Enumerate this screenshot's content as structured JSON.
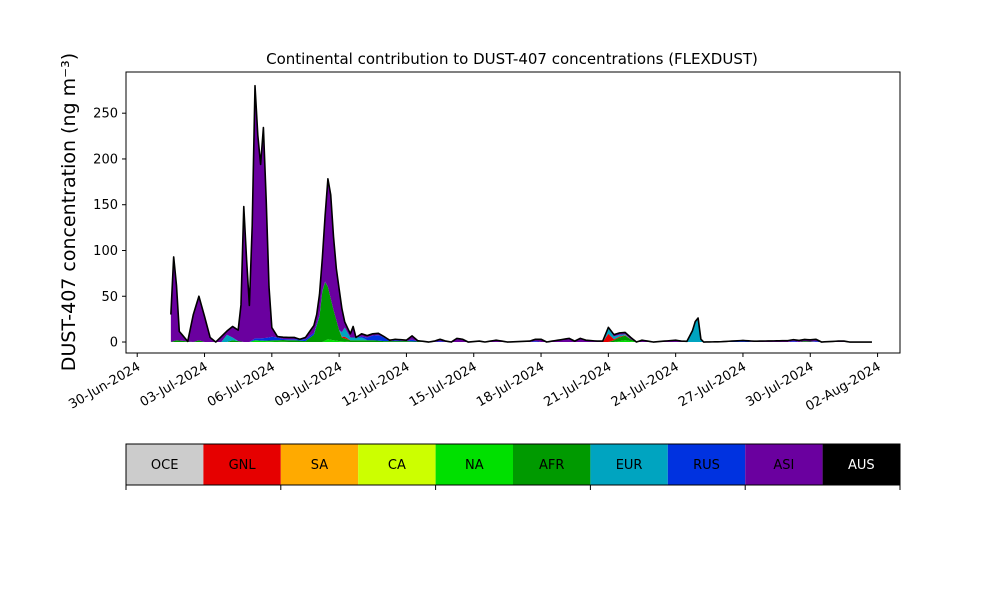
{
  "chart_data": {
    "type": "area",
    "stacked": true,
    "title": "Continental contribution to DUST-407 concentrations (FLEXDUST)",
    "ylabel": "DUST-407 concentration (ng m⁻³)",
    "xlabel": "",
    "ylim": [
      -12,
      295
    ],
    "xlim": [
      "2024-06-29T12:00",
      "2024-08-03T00:00"
    ],
    "grid": false,
    "y_ticks": [
      0,
      50,
      100,
      150,
      200,
      250
    ],
    "x_ticks": [
      "30-Jun-2024",
      "03-Jul-2024",
      "06-Jul-2024",
      "09-Jul-2024",
      "12-Jul-2024",
      "15-Jul-2024",
      "18-Jul-2024",
      "21-Jul-2024",
      "24-Jul-2024",
      "27-Jul-2024",
      "30-Jul-2024",
      "02-Aug-2024"
    ],
    "total_line_color": "#000000",
    "legend": {
      "placement": "bottom",
      "style": "colorbar",
      "entries": [
        {
          "label": "OCE",
          "color": "#cccccc",
          "text_color": "#000000"
        },
        {
          "label": "GNL",
          "color": "#e60000",
          "text_color": "#000000"
        },
        {
          "label": "SA",
          "color": "#ffaa00",
          "text_color": "#000000"
        },
        {
          "label": "CA",
          "color": "#ccff00",
          "text_color": "#000000"
        },
        {
          "label": "NA",
          "color": "#00e000",
          "text_color": "#000000"
        },
        {
          "label": "AFR",
          "color": "#009a00",
          "text_color": "#000000"
        },
        {
          "label": "EUR",
          "color": "#00a4c0",
          "text_color": "#000000"
        },
        {
          "label": "RUS",
          "color": "#0032e0",
          "text_color": "#000000"
        },
        {
          "label": "ASI",
          "color": "#6a009f",
          "text_color": "#000000"
        },
        {
          "label": "AUS",
          "color": "#000000",
          "text_color": "#ffffff"
        }
      ]
    },
    "series_order": [
      "NA",
      "AFR",
      "GNL",
      "EUR",
      "RUS",
      "ASI"
    ],
    "series": [
      {
        "name": "NA",
        "color": "#00e000",
        "points": [
          [
            "2024-07-01T12:00",
            0
          ],
          [
            "2024-07-05T00:00",
            0
          ],
          [
            "2024-07-05T06:00",
            2
          ],
          [
            "2024-07-05T18:00",
            1
          ],
          [
            "2024-07-06T18:00",
            0
          ],
          [
            "2024-07-08T06:00",
            0
          ],
          [
            "2024-07-08T12:00",
            3
          ],
          [
            "2024-07-09T00:00",
            1
          ],
          [
            "2024-07-09T12:00",
            0
          ],
          [
            "2024-07-21T06:00",
            0
          ],
          [
            "2024-07-21T18:00",
            2
          ],
          [
            "2024-07-22T06:00",
            0
          ],
          [
            "2024-08-01T18:00",
            0
          ]
        ]
      },
      {
        "name": "AFR",
        "color": "#009a00",
        "points": [
          [
            "2024-07-01T12:00",
            0
          ],
          [
            "2024-07-01T18:00",
            2
          ],
          [
            "2024-07-02T12:00",
            0
          ],
          [
            "2024-07-02T18:00",
            2
          ],
          [
            "2024-07-03T00:00",
            0
          ],
          [
            "2024-07-04T00:00",
            0
          ],
          [
            "2024-07-04T06:00",
            2
          ],
          [
            "2024-07-04T18:00",
            0
          ],
          [
            "2024-07-05T12:00",
            0
          ],
          [
            "2024-07-06T00:00",
            1
          ],
          [
            "2024-07-06T12:00",
            2
          ],
          [
            "2024-07-07T00:00",
            2
          ],
          [
            "2024-07-07T12:00",
            1
          ],
          [
            "2024-07-07T21:00",
            8
          ],
          [
            "2024-07-08T03:00",
            28
          ],
          [
            "2024-07-08T06:00",
            55
          ],
          [
            "2024-07-08T09:00",
            64
          ],
          [
            "2024-07-08T13:00",
            55
          ],
          [
            "2024-07-08T16:00",
            40
          ],
          [
            "2024-07-08T20:00",
            26
          ],
          [
            "2024-07-09T00:00",
            12
          ],
          [
            "2024-07-09T03:00",
            4
          ],
          [
            "2024-07-09T12:00",
            2
          ],
          [
            "2024-07-10T12:00",
            2
          ],
          [
            "2024-07-11T00:00",
            1
          ],
          [
            "2024-07-12T00:00",
            1
          ],
          [
            "2024-07-13T00:00",
            0
          ],
          [
            "2024-07-21T00:00",
            0
          ],
          [
            "2024-07-21T06:00",
            2
          ],
          [
            "2024-07-21T12:00",
            4
          ],
          [
            "2024-07-21T18:00",
            5
          ],
          [
            "2024-07-22T00:00",
            2
          ],
          [
            "2024-07-22T06:00",
            0
          ],
          [
            "2024-07-29T12:00",
            0
          ],
          [
            "2024-07-29T18:00",
            1
          ],
          [
            "2024-07-30T06:00",
            0
          ],
          [
            "2024-08-01T18:00",
            0
          ]
        ]
      },
      {
        "name": "GNL",
        "color": "#e60000",
        "points": [
          [
            "2024-07-01T12:00",
            0
          ],
          [
            "2024-07-09T00:00",
            0
          ],
          [
            "2024-07-09T06:00",
            2
          ],
          [
            "2024-07-09T12:00",
            0
          ],
          [
            "2024-07-20T18:00",
            0
          ],
          [
            "2024-07-21T00:00",
            9
          ],
          [
            "2024-07-21T06:00",
            1
          ],
          [
            "2024-07-21T12:00",
            1
          ],
          [
            "2024-07-22T00:00",
            0
          ],
          [
            "2024-08-01T18:00",
            0
          ]
        ]
      },
      {
        "name": "EUR",
        "color": "#00a4c0",
        "points": [
          [
            "2024-07-01T12:00",
            0
          ],
          [
            "2024-07-03T18:00",
            0
          ],
          [
            "2024-07-04T00:00",
            8
          ],
          [
            "2024-07-04T06:00",
            3
          ],
          [
            "2024-07-04T12:00",
            0
          ],
          [
            "2024-07-09T00:00",
            0
          ],
          [
            "2024-07-09T06:00",
            10
          ],
          [
            "2024-07-09T12:00",
            3
          ],
          [
            "2024-07-10T00:00",
            3
          ],
          [
            "2024-07-10T06:00",
            0
          ],
          [
            "2024-07-20T18:00",
            0
          ],
          [
            "2024-07-21T00:00",
            6
          ],
          [
            "2024-07-21T06:00",
            3
          ],
          [
            "2024-07-21T12:00",
            2
          ],
          [
            "2024-07-22T00:00",
            0
          ],
          [
            "2024-07-24T12:00",
            0
          ],
          [
            "2024-07-24T18:00",
            12
          ],
          [
            "2024-07-24T21:00",
            22
          ],
          [
            "2024-07-25T00:00",
            26
          ],
          [
            "2024-07-25T03:00",
            3
          ],
          [
            "2024-07-25T06:00",
            0
          ],
          [
            "2024-08-01T18:00",
            0
          ]
        ]
      },
      {
        "name": "RUS",
        "color": "#0032e0",
        "points": [
          [
            "2024-07-01T12:00",
            0
          ],
          [
            "2024-07-05T00:00",
            0
          ],
          [
            "2024-07-05T06:00",
            2
          ],
          [
            "2024-07-05T18:00",
            3
          ],
          [
            "2024-07-06T00:00",
            4
          ],
          [
            "2024-07-06T06:00",
            3
          ],
          [
            "2024-07-06T12:00",
            1
          ],
          [
            "2024-07-07T00:00",
            1
          ],
          [
            "2024-07-07T12:00",
            2
          ],
          [
            "2024-07-08T00:00",
            2
          ],
          [
            "2024-07-08T12:00",
            0
          ],
          [
            "2024-07-09T18:00",
            0
          ],
          [
            "2024-07-10T00:00",
            1
          ],
          [
            "2024-07-10T12:00",
            5
          ],
          [
            "2024-07-10T18:00",
            6
          ],
          [
            "2024-07-11T00:00",
            4
          ],
          [
            "2024-07-11T06:00",
            0
          ],
          [
            "2024-07-11T12:00",
            1
          ],
          [
            "2024-07-12T00:00",
            0
          ],
          [
            "2024-07-12T06:00",
            2
          ],
          [
            "2024-07-12T12:00",
            0
          ],
          [
            "2024-07-13T06:00",
            0
          ],
          [
            "2024-07-13T12:00",
            1
          ],
          [
            "2024-07-13T18:00",
            0
          ],
          [
            "2024-07-17T12:00",
            0
          ],
          [
            "2024-07-17T18:00",
            1
          ],
          [
            "2024-07-18T00:00",
            0
          ],
          [
            "2024-07-26T00:00",
            0
          ],
          [
            "2024-07-27T00:00",
            1
          ],
          [
            "2024-07-27T12:00",
            0
          ],
          [
            "2024-07-29T00:00",
            0
          ],
          [
            "2024-07-29T06:00",
            1
          ],
          [
            "2024-07-29T12:00",
            0
          ],
          [
            "2024-07-30T00:00",
            0
          ],
          [
            "2024-07-30T06:00",
            1
          ],
          [
            "2024-07-30T12:00",
            0
          ],
          [
            "2024-08-01T18:00",
            0
          ]
        ]
      },
      {
        "name": "ASI",
        "color": "#6a009f",
        "points": [
          [
            "2024-07-01T12:00",
            30
          ],
          [
            "2024-07-01T15:00",
            92
          ],
          [
            "2024-07-01T18:00",
            60
          ],
          [
            "2024-07-01T21:00",
            10
          ],
          [
            "2024-07-02T06:00",
            0
          ],
          [
            "2024-07-02T12:00",
            30
          ],
          [
            "2024-07-02T18:00",
            48
          ],
          [
            "2024-07-03T00:00",
            28
          ],
          [
            "2024-07-03T06:00",
            5
          ],
          [
            "2024-07-03T12:00",
            0
          ],
          [
            "2024-07-03T18:00",
            6
          ],
          [
            "2024-07-04T00:00",
            4
          ],
          [
            "2024-07-04T06:00",
            12
          ],
          [
            "2024-07-04T12:00",
            12
          ],
          [
            "2024-07-04T15:00",
            40
          ],
          [
            "2024-07-04T18:00",
            148
          ],
          [
            "2024-07-04T21:00",
            90
          ],
          [
            "2024-07-05T00:00",
            40
          ],
          [
            "2024-07-05T03:00",
            125
          ],
          [
            "2024-07-05T06:00",
            276
          ],
          [
            "2024-07-05T09:00",
            222
          ],
          [
            "2024-07-05T12:00",
            190
          ],
          [
            "2024-07-05T15:00",
            230
          ],
          [
            "2024-07-05T18:00",
            150
          ],
          [
            "2024-07-05T21:00",
            55
          ],
          [
            "2024-07-06T00:00",
            10
          ],
          [
            "2024-07-06T06:00",
            1
          ],
          [
            "2024-07-06T12:00",
            2
          ],
          [
            "2024-07-07T00:00",
            2
          ],
          [
            "2024-07-07T06:00",
            0
          ],
          [
            "2024-07-07T12:00",
            2
          ],
          [
            "2024-07-07T18:00",
            6
          ],
          [
            "2024-07-08T00:00",
            10
          ],
          [
            "2024-07-08T06:00",
            35
          ],
          [
            "2024-07-08T09:00",
            72
          ],
          [
            "2024-07-08T12:00",
            118
          ],
          [
            "2024-07-08T14:00",
            125
          ],
          [
            "2024-07-08T17:00",
            90
          ],
          [
            "2024-07-08T20:00",
            60
          ],
          [
            "2024-07-09T00:00",
            45
          ],
          [
            "2024-07-09T06:00",
            6
          ],
          [
            "2024-07-09T12:00",
            4
          ],
          [
            "2024-07-09T15:00",
            12
          ],
          [
            "2024-07-09T18:00",
            0
          ],
          [
            "2024-07-10T00:00",
            3
          ],
          [
            "2024-07-10T06:00",
            2
          ],
          [
            "2024-07-10T12:00",
            2
          ],
          [
            "2024-07-10T18:00",
            2
          ],
          [
            "2024-07-11T00:00",
            1
          ],
          [
            "2024-07-12T00:00",
            1
          ],
          [
            "2024-07-12T06:00",
            4
          ],
          [
            "2024-07-12T12:00",
            1
          ],
          [
            "2024-07-13T00:00",
            0
          ],
          [
            "2024-07-13T12:00",
            2
          ],
          [
            "2024-07-14T00:00",
            0
          ],
          [
            "2024-07-14T06:00",
            4
          ],
          [
            "2024-07-14T12:00",
            3
          ],
          [
            "2024-07-14T18:00",
            0
          ],
          [
            "2024-07-15T06:00",
            1
          ],
          [
            "2024-07-15T12:00",
            0
          ],
          [
            "2024-07-16T00:00",
            2
          ],
          [
            "2024-07-16T12:00",
            0
          ],
          [
            "2024-07-17T12:00",
            1
          ],
          [
            "2024-07-18T00:00",
            3
          ],
          [
            "2024-07-18T06:00",
            0
          ],
          [
            "2024-07-19T06:00",
            4
          ],
          [
            "2024-07-19T12:00",
            1
          ],
          [
            "2024-07-19T18:00",
            4
          ],
          [
            "2024-07-20T00:00",
            2
          ],
          [
            "2024-07-20T12:00",
            1
          ],
          [
            "2024-07-21T00:00",
            1
          ],
          [
            "2024-07-21T06:00",
            2
          ],
          [
            "2024-07-21T12:00",
            2
          ],
          [
            "2024-07-22T00:00",
            2
          ],
          [
            "2024-07-22T06:00",
            0
          ],
          [
            "2024-07-22T12:00",
            2
          ],
          [
            "2024-07-23T00:00",
            0
          ],
          [
            "2024-07-24T00:00",
            2
          ],
          [
            "2024-07-24T06:00",
            1
          ],
          [
            "2024-07-25T06:00",
            0
          ],
          [
            "2024-07-30T06:00",
            2
          ],
          [
            "2024-07-30T12:00",
            0
          ],
          [
            "2024-07-31T06:00",
            1
          ],
          [
            "2024-07-31T12:00",
            1
          ],
          [
            "2024-07-31T18:00",
            0
          ],
          [
            "2024-08-01T18:00",
            0
          ]
        ]
      }
    ]
  }
}
